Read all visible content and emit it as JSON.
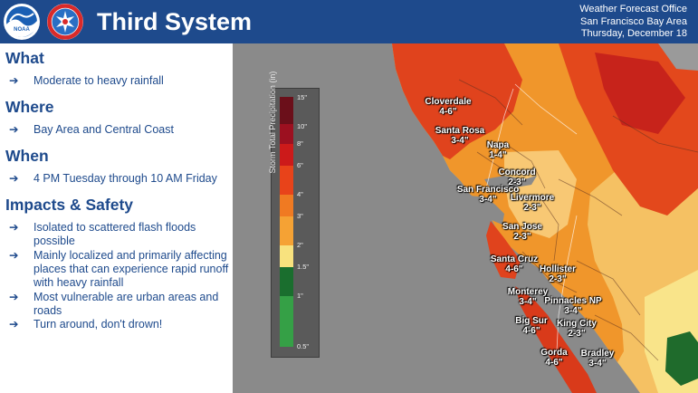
{
  "header": {
    "title": "Third System",
    "office": {
      "line1": "Weather Forecast Office",
      "line2": "San Francisco Bay Area",
      "line3": "Thursday, December 18"
    },
    "noaa_logo_text": "NOAA",
    "nws_logo_text": "NATIONAL WEATHER SERVICE"
  },
  "what": {
    "heading": "What",
    "items": [
      "Moderate to heavy rainfall"
    ]
  },
  "where": {
    "heading": "Where",
    "items": [
      "Bay Area and Central Coast"
    ]
  },
  "when": {
    "heading": "When",
    "items": [
      "4 PM Tuesday through 10 AM Friday"
    ]
  },
  "impacts": {
    "heading": "Impacts & Safety",
    "items": [
      "Isolated to scattered flash floods possible",
      "Mainly localized and primarily affecting places that can experience rapid runoff with heavy rainfall",
      "Most vulnerable are urban areas and roads",
      "Turn around, don't drown!"
    ]
  },
  "arrow_glyph": "➔",
  "legend": {
    "title": "Storm Total Precipitation (in)",
    "ticks": [
      "15\"",
      "10\"",
      "8\"",
      "6\"",
      "4\"",
      "3\"",
      "2\"",
      "1.5\"",
      "1\"",
      "0.5\""
    ],
    "colors": [
      "#6b0f1a",
      "#9c1020",
      "#cc1a1a",
      "#e8431a",
      "#f07a22",
      "#f5a234",
      "#f8e27e",
      "#1a6e2e",
      "#35a046"
    ]
  },
  "cities": [
    {
      "name": "Cloverdale",
      "range": "4-6\""
    },
    {
      "name": "Santa Rosa",
      "range": "3-4\""
    },
    {
      "name": "Napa",
      "range": "1-4\""
    },
    {
      "name": "Concord",
      "range": "2-3\""
    },
    {
      "name": "San Francisco",
      "range": "3-4\""
    },
    {
      "name": "Livermore",
      "range": "2-3\""
    },
    {
      "name": "San Jose",
      "range": "2-3\""
    },
    {
      "name": "Santa Cruz",
      "range": "4-6\""
    },
    {
      "name": "Hollister",
      "range": "2-3\""
    },
    {
      "name": "Monterey",
      "range": "3-4\""
    },
    {
      "name": "Pinnacles NP",
      "range": "3-4\""
    },
    {
      "name": "Big Sur",
      "range": "4-6\""
    },
    {
      "name": "King City",
      "range": "2-3\""
    },
    {
      "name": "Gorda",
      "range": "4-6\""
    },
    {
      "name": "Bradley",
      "range": "3-4\""
    }
  ]
}
